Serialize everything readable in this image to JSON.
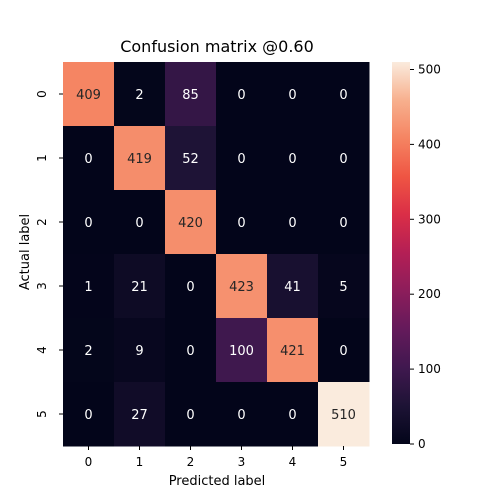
{
  "chart_data": {
    "type": "heatmap",
    "title": "Confusion matrix @0.60",
    "xlabel": "Predicted label",
    "ylabel": "Actual label",
    "x_categories": [
      "0",
      "1",
      "2",
      "3",
      "4",
      "5"
    ],
    "y_categories": [
      "0",
      "1",
      "2",
      "3",
      "4",
      "5"
    ],
    "values": [
      [
        409,
        2,
        85,
        0,
        0,
        0
      ],
      [
        0,
        419,
        52,
        0,
        0,
        0
      ],
      [
        0,
        0,
        420,
        0,
        0,
        0
      ],
      [
        1,
        21,
        0,
        423,
        41,
        5
      ],
      [
        2,
        9,
        0,
        100,
        421,
        0
      ],
      [
        0,
        27,
        0,
        0,
        0,
        510
      ]
    ],
    "colorscale": "rocket",
    "vmin": 0,
    "vmax": 510,
    "colorbar_ticks": [
      0,
      100,
      200,
      300,
      400,
      500
    ],
    "colorbar_tick_labels": [
      "0",
      "100",
      "200",
      "300",
      "400",
      "500"
    ],
    "annotations": true
  }
}
